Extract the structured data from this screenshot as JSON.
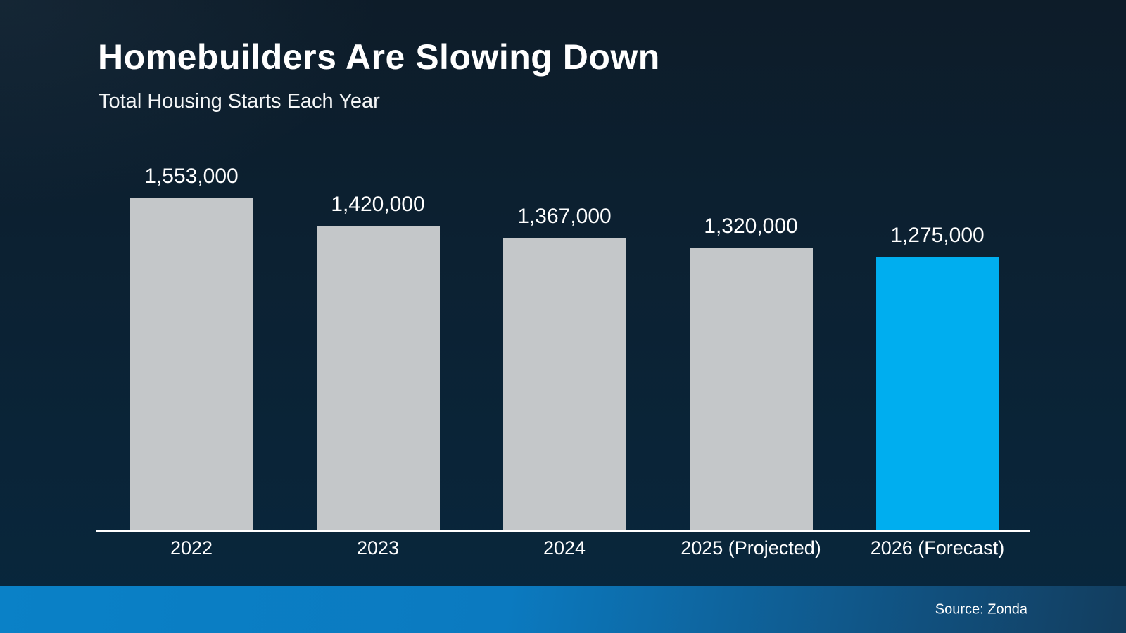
{
  "header": {
    "title": "Homebuilders Are Slowing Down",
    "subtitle": "Total Housing Starts Each Year"
  },
  "footer": {
    "source": "Source: Zonda"
  },
  "colors": {
    "bar_default": "#c4c7c9",
    "bar_highlight": "#00aeef",
    "axis": "#ffffff",
    "text": "#ffffff",
    "background_top": "#0d1c29",
    "background_bottom": "#08273d",
    "footer_gradient_left": "#0a81c7",
    "footer_gradient_right": "#123d5e"
  },
  "chart_data": {
    "type": "bar",
    "title": "Homebuilders Are Slowing Down",
    "subtitle": "Total Housing Starts Each Year",
    "categories": [
      "2022",
      "2023",
      "2024",
      "2025 (Projected)",
      "2026 (Forecast)"
    ],
    "values": [
      1553000,
      1420000,
      1367000,
      1320000,
      1275000
    ],
    "value_labels": [
      "1,553,000",
      "1,420,000",
      "1,367,000",
      "1,320,000",
      "1,275,000"
    ],
    "highlight_index": 4,
    "ylabel": "",
    "xlabel": "",
    "ylim": [
      0,
      1553000
    ],
    "grid": false,
    "legend": false,
    "data_labels_position": "above-bars",
    "source": "Source: Zonda"
  }
}
